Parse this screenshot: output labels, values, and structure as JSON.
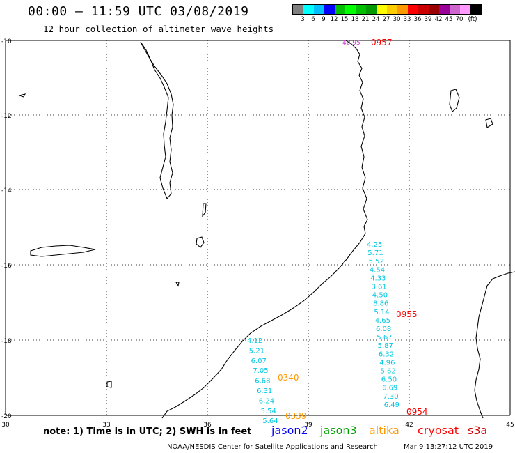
{
  "header": {
    "title": "00:00 – 11:59 UTC 03/08/2019",
    "subtitle": "12 hour collection of altimeter wave heights"
  },
  "color_scale": {
    "colors": [
      "#7f7f7f",
      "#00ffff",
      "#00bfff",
      "#0000ff",
      "#00bf00",
      "#00ff00",
      "#00bf00",
      "#009900",
      "#ffff00",
      "#ffcc00",
      "#ff9900",
      "#ff0000",
      "#cc0000",
      "#990000",
      "#990099",
      "#cc66cc",
      "#ff99ff",
      "#000000"
    ],
    "labels": [
      "3",
      "6",
      "9",
      "12",
      "15",
      "18",
      "21",
      "24",
      "27",
      "30",
      "33",
      "36",
      "39",
      "42",
      "45",
      "70",
      "(ft)"
    ]
  },
  "axes": {
    "lat_labels": [
      "-10",
      "-12",
      "-14",
      "-16",
      "-18",
      "-20"
    ],
    "lon_labels": [
      "30",
      "33",
      "36",
      "39",
      "42",
      "45"
    ]
  },
  "observations": {
    "track_purple": [
      {
        "value": "40.95"
      }
    ],
    "track_east": [
      "4.25",
      "5.71",
      "5.52",
      "4.54",
      "4.33",
      "3.61",
      "4.50",
      "8.86",
      "5.14",
      "4.65",
      "6.08",
      "5.67",
      "5.87",
      "6.32",
      "4.96",
      "5.62",
      "6.50",
      "6.69",
      "7.30",
      "6.49"
    ],
    "track_west": [
      "4.12",
      "5.21",
      "6.07",
      "7.05",
      "6.68",
      "6.31",
      "6.24",
      "5.54",
      "5.64"
    ],
    "pass_times": [
      {
        "time": "0957",
        "color": "#ff0000"
      },
      {
        "time": "0955",
        "color": "#ff0000"
      },
      {
        "time": "0340",
        "color": "#ff9900"
      },
      {
        "time": "0954",
        "color": "#ff0000"
      },
      {
        "time": "0339",
        "color": "#ff9900"
      }
    ]
  },
  "footer": {
    "note": "note: 1) Time is in UTC; 2) SWH is in feet",
    "satellites": [
      {
        "name": "jason2",
        "color": "#0000ff"
      },
      {
        "name": "jason3",
        "color": "#00a000"
      },
      {
        "name": "altika",
        "color": "#ff9900"
      },
      {
        "name": "cryosat",
        "color": "#ff0000"
      },
      {
        "name": "s3a",
        "color": "#cc0000"
      }
    ],
    "credit": "NOAA/NESDIS Center for Satellite Applications and Research",
    "timestamp": "Mar  9 13:27:12 UTC 2019"
  }
}
